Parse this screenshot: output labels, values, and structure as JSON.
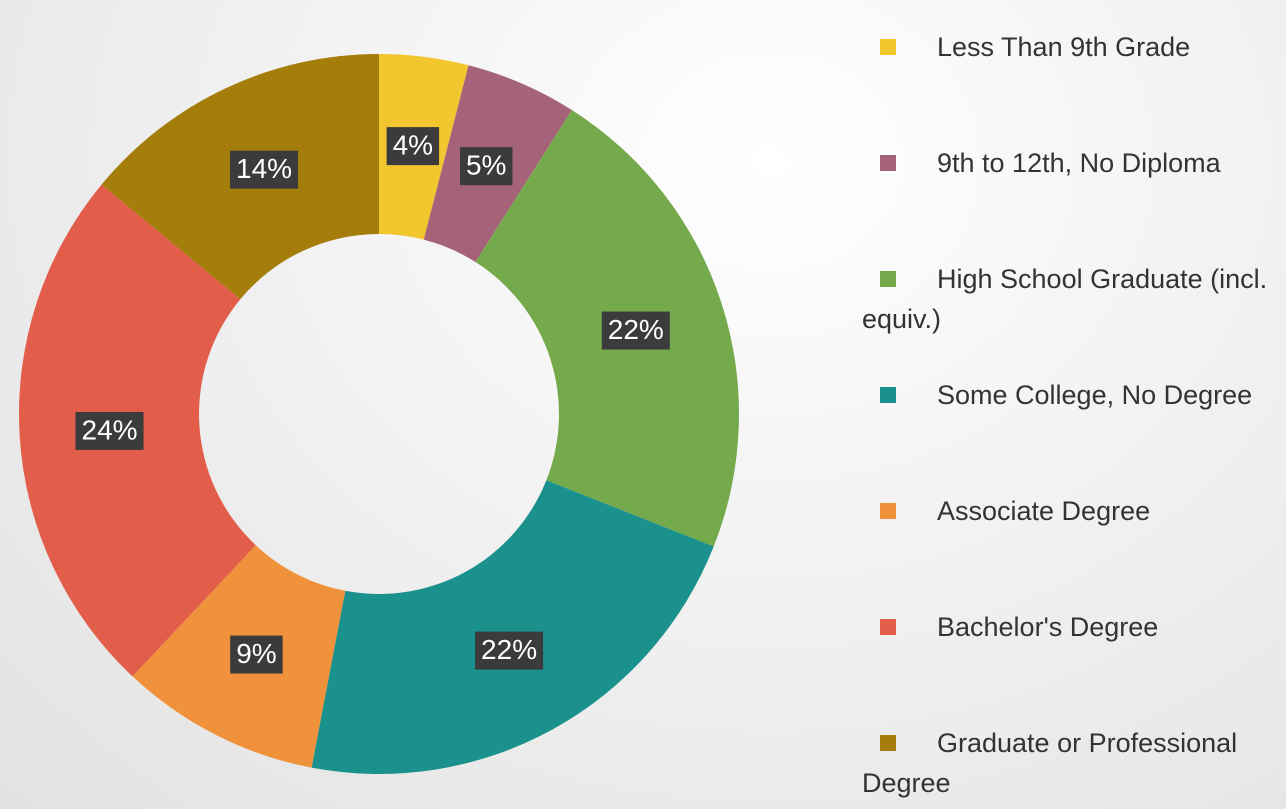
{
  "chart_data": {
    "type": "donut",
    "categories": [
      "Less Than 9th Grade",
      "9th to 12th, No Diploma",
      "High School Graduate (incl. equiv.)",
      "Some College, No Degree",
      "Associate Degree",
      "Bachelor's Degree",
      "Graduate or Professional Degree"
    ],
    "values": [
      4,
      5,
      22,
      22,
      9,
      24,
      14
    ],
    "value_labels": [
      "4%",
      "5%",
      "22%",
      "22%",
      "9%",
      "24%",
      "14%"
    ],
    "colors": [
      "#f2c62f",
      "#a5637a",
      "#75aa4c",
      "#1b918d",
      "#f0923b",
      "#e35e4a",
      "#a57d0b"
    ],
    "legend": "right"
  }
}
